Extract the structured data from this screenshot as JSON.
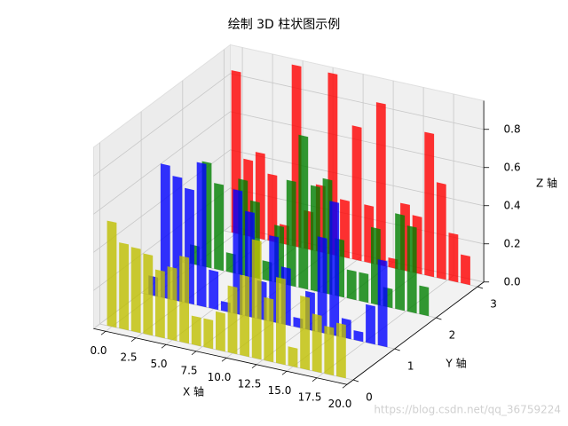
{
  "chart_data": {
    "type": "bar3d",
    "title": "绘制 3D 柱状图示例",
    "x_label": "X 轴",
    "y_label": "Y 轴",
    "z_label": "Z 轴",
    "watermark": "https://blog.csdn.net/qq_36759224",
    "xlim": [
      -1,
      20
    ],
    "ylim": [
      -0.15,
      3.15
    ],
    "zlim": [
      0,
      0.95
    ],
    "xticks": [
      {
        "value": 0,
        "label": "0.0"
      },
      2.5,
      {
        "value": 5,
        "label": "5.0"
      },
      7.5,
      {
        "value": 10,
        "label": "10.0"
      },
      12.5,
      {
        "value": 15,
        "label": "15.0"
      },
      17.5,
      {
        "value": 20,
        "label": "20.0"
      }
    ],
    "yticks": [
      0,
      1,
      2,
      3
    ],
    "zticks": [
      {
        "value": 0,
        "label": "0.0"
      },
      0.2,
      0.4,
      0.6,
      0.8
    ],
    "x": [
      0,
      1,
      2,
      3,
      4,
      5,
      6,
      7,
      8,
      9,
      10,
      11,
      12,
      13,
      14,
      15,
      16,
      17,
      18,
      19
    ],
    "grid": true,
    "series": [
      {
        "name": "r",
        "y": 3,
        "color": "#ff0000",
        "values": [
          0.85,
          0.4,
          0.45,
          0.35,
          0.1,
          0.95,
          0.2,
          0.35,
          0.95,
          0.3,
          0.7,
          0.3,
          0.85,
          0.05,
          0.35,
          0.3,
          0.75,
          0.5,
          0.25,
          0.15
        ]
      },
      {
        "name": "g",
        "y": 2,
        "color": "#008000",
        "values": [
          0.1,
          0.55,
          0.45,
          0.1,
          0.5,
          0.4,
          0.1,
          0.3,
          0.55,
          0.8,
          0.55,
          0.6,
          0.3,
          0.15,
          0.15,
          0.4,
          0.1,
          0.5,
          0.45,
          0.15
        ]
      },
      {
        "name": "b",
        "y": 1,
        "color": "#0000ff",
        "values": [
          0.1,
          0.7,
          0.65,
          0.6,
          0.75,
          0.2,
          0.05,
          0.65,
          0.55,
          0.2,
          0.45,
          0.3,
          0.05,
          0.2,
          0.5,
          0.7,
          0.1,
          0.05,
          0.2,
          0.45
        ]
      },
      {
        "name": "y",
        "y": 0,
        "color": "#bfbf00",
        "values": [
          0.55,
          0.45,
          0.44,
          0.42,
          0.35,
          0.38,
          0.45,
          0.15,
          0.15,
          0.2,
          0.35,
          0.42,
          0.62,
          0.33,
          0.45,
          0.1,
          0.38,
          0.3,
          0.25,
          0.28
        ]
      }
    ]
  }
}
